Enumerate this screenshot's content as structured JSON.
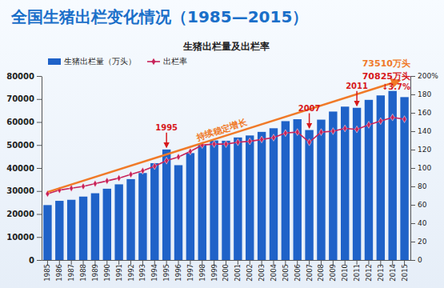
{
  "chart_data": {
    "type": "bar",
    "title": "全国生猪出栏变化情况（1985—2015）",
    "subtitle": "生猪出栏量及出栏率",
    "categories": [
      "1985",
      "1986",
      "1987",
      "1988",
      "1989",
      "1990",
      "1991",
      "1992",
      "1993",
      "1994",
      "1995",
      "1996",
      "1997",
      "1998",
      "1999",
      "2000",
      "2001",
      "2002",
      "2003",
      "2004",
      "2005",
      "2006",
      "2007",
      "2008",
      "2009",
      "2010",
      "2011",
      "2012",
      "2013",
      "2014",
      "2015"
    ],
    "series": [
      {
        "name": "生猪出栏量（万头）",
        "type": "bar",
        "color": "#1f62c8",
        "values": [
          23875,
          25722,
          26177,
          27570,
          29023,
          30991,
          32897,
          35170,
          37824,
          42103,
          48051,
          41225,
          46484,
          50215,
          51977,
          51862,
          53281,
          54144,
          55702,
          57279,
          60367,
          61207,
          56508,
          61017,
          64539,
          66686,
          66170,
          69628,
          71557,
          73510,
          70825
        ]
      },
      {
        "name": "出栏率",
        "type": "line",
        "color": "#c8235a",
        "marker": "diamond",
        "axis": "y2",
        "values": [
          72,
          76,
          78,
          80,
          83,
          86,
          89,
          93,
          97,
          102,
          108,
          112,
          118,
          125,
          126,
          126,
          128,
          129,
          131,
          133,
          138,
          139,
          128,
          139,
          140,
          143,
          142,
          147,
          151,
          155,
          153
        ]
      }
    ],
    "ylim": [
      0,
      80000
    ],
    "yticks": [
      0,
      10000,
      20000,
      30000,
      40000,
      50000,
      60000,
      70000,
      80000
    ],
    "y2lim": [
      0,
      200
    ],
    "y2ticks": [
      0,
      20,
      40,
      60,
      80,
      100,
      120,
      140,
      160,
      180,
      {
        "value": 200,
        "label": "200%"
      }
    ],
    "grid": false,
    "legend": "top-left",
    "annotations": [
      {
        "text": "持续稳定增长"
      },
      {
        "text": "1995",
        "x": "1995"
      },
      {
        "text": "2007",
        "x": "2007"
      },
      {
        "text": "2011",
        "x": "2011"
      },
      {
        "text": "73510万头",
        "x": "2014"
      },
      {
        "text": "70825万头",
        "x": "2015"
      },
      {
        "text": "↓3.7%",
        "x": "2015"
      }
    ]
  }
}
